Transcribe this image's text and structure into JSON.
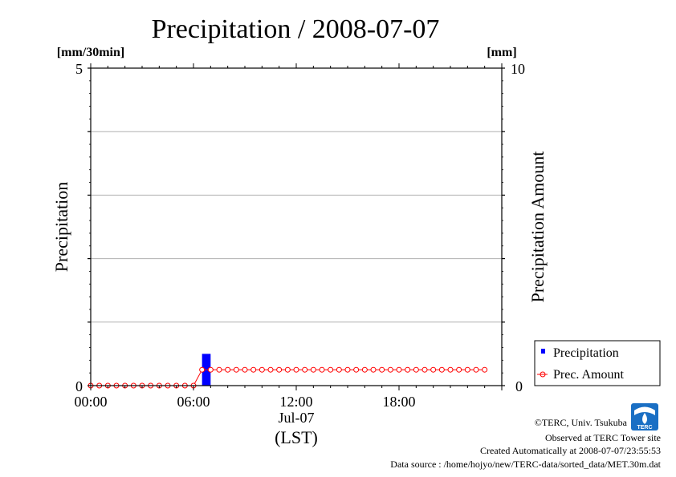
{
  "chart_data": {
    "type": "bar+line",
    "title": "Precipitation / 2008-07-07",
    "left_axis": {
      "unit": "[mm/30min]",
      "label": "Precipitation",
      "ylim": [
        0,
        5
      ],
      "ticks": [
        "0",
        "5"
      ]
    },
    "right_axis": {
      "unit": "[mm]",
      "label": "Precipitation Amount",
      "ylim": [
        0,
        10
      ],
      "ticks": [
        "0",
        "10"
      ]
    },
    "x_axis": {
      "range_hours": [
        0,
        24
      ],
      "ticks": [
        {
          "hour": 0,
          "label": "00:00"
        },
        {
          "hour": 6,
          "label": "06:00"
        },
        {
          "hour": 12,
          "label": "12:00"
        },
        {
          "hour": 18,
          "label": "18:00"
        }
      ],
      "date_label": "Jul-07",
      "tz_label": "(LST)"
    },
    "grid": "horizontal",
    "series": [
      {
        "name": "Precipitation",
        "type": "bar",
        "axis": "left",
        "color": "#0000ff",
        "x_hours": [
          6.5
        ],
        "values": [
          0.5
        ]
      },
      {
        "name": "Prec. Amount",
        "type": "line",
        "axis": "right",
        "color": "#ff0000",
        "x_start_hour": 0,
        "x_step_hour": 0.5,
        "values": [
          0,
          0,
          0,
          0,
          0,
          0,
          0,
          0,
          0,
          0,
          0,
          0,
          0,
          0.5,
          0.5,
          0.5,
          0.5,
          0.5,
          0.5,
          0.5,
          0.5,
          0.5,
          0.5,
          0.5,
          0.5,
          0.5,
          0.5,
          0.5,
          0.5,
          0.5,
          0.5,
          0.5,
          0.5,
          0.5,
          0.5,
          0.5,
          0.5,
          0.5,
          0.5,
          0.5,
          0.5,
          0.5,
          0.5,
          0.5,
          0.5,
          0.5,
          0.5
        ]
      }
    ],
    "legend": {
      "position": "bottom-right-outside",
      "items": [
        "Precipitation",
        "Prec. Amount"
      ]
    }
  },
  "footer": {
    "copyright": "©TERC, Univ. Tsukuba",
    "observed": "Observed at TERC Tower site",
    "created": "Created Automatically at 2008-07-07/23:55:53",
    "source": "Data source : /home/hojyo/new/TERC-data/sorted_data/MET.30m.dat",
    "logo_text": "TERC"
  }
}
